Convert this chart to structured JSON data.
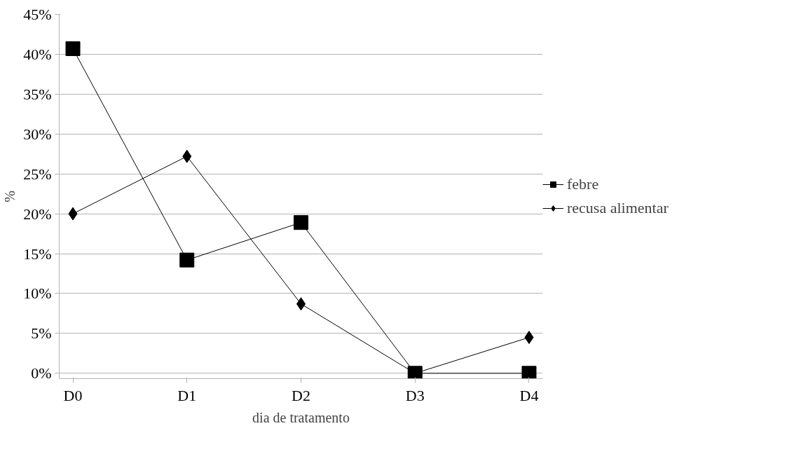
{
  "chart_data": {
    "type": "line",
    "xlabel": "dia de tratamento",
    "ylabel": "%",
    "categories": [
      "D0",
      "D1",
      "D2",
      "D3",
      "D4"
    ],
    "series": [
      {
        "name": "febre",
        "color": "#000000",
        "marker": "square",
        "values": [
          40.7,
          14.2,
          18.9,
          0,
          0
        ]
      },
      {
        "name": "recusa alimentar",
        "color": "#000000",
        "marker": "diamond",
        "values": [
          20,
          27.2,
          8.7,
          0,
          4.5
        ]
      }
    ],
    "ylim": [
      0,
      45
    ],
    "yticks": [
      {
        "value": 0,
        "label": "0%"
      },
      {
        "value": 5,
        "label": "5%"
      },
      {
        "value": 10,
        "label": "10%"
      },
      {
        "value": 15,
        "label": "15%"
      },
      {
        "value": 20,
        "label": "20%"
      },
      {
        "value": 25,
        "label": "25%"
      },
      {
        "value": 30,
        "label": "30%"
      },
      {
        "value": 35,
        "label": "35%"
      },
      {
        "value": 40,
        "label": "40%"
      },
      {
        "value": 45,
        "label": "45%"
      }
    ],
    "grid": "y",
    "legend": "right",
    "line_style": "solid"
  }
}
